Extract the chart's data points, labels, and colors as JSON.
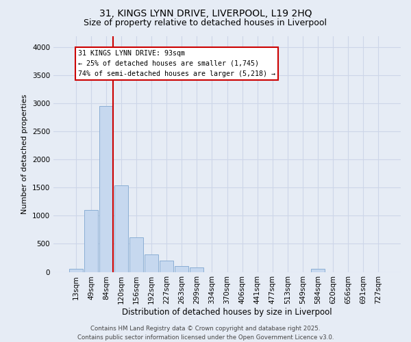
{
  "title_line1": "31, KINGS LYNN DRIVE, LIVERPOOL, L19 2HQ",
  "title_line2": "Size of property relative to detached houses in Liverpool",
  "xlabel": "Distribution of detached houses by size in Liverpool",
  "ylabel": "Number of detached properties",
  "bin_labels": [
    "13sqm",
    "49sqm",
    "84sqm",
    "120sqm",
    "156sqm",
    "192sqm",
    "227sqm",
    "263sqm",
    "299sqm",
    "334sqm",
    "370sqm",
    "406sqm",
    "441sqm",
    "477sqm",
    "513sqm",
    "549sqm",
    "584sqm",
    "620sqm",
    "656sqm",
    "691sqm",
    "727sqm"
  ],
  "bar_heights": [
    60,
    1100,
    2950,
    1540,
    610,
    310,
    205,
    100,
    80,
    0,
    0,
    0,
    0,
    0,
    0,
    0,
    55,
    0,
    0,
    0,
    0
  ],
  "bar_color": "#c6d8ef",
  "bar_edge_color": "#8aaed4",
  "red_line_index": 2,
  "annotation_text": "31 KINGS LYNN DRIVE: 93sqm\n← 25% of detached houses are smaller (1,745)\n74% of semi-detached houses are larger (5,218) →",
  "annotation_box_facecolor": "#ffffff",
  "annotation_box_edgecolor": "#cc0000",
  "red_line_color": "#cc0000",
  "ylim_max": 4200,
  "yticks": [
    0,
    500,
    1000,
    1500,
    2000,
    2500,
    3000,
    3500,
    4000
  ],
  "grid_color": "#cdd6e8",
  "background_color": "#e6ecf5",
  "footer_line1": "Contains HM Land Registry data © Crown copyright and database right 2025.",
  "footer_line2": "Contains public sector information licensed under the Open Government Licence v3.0."
}
